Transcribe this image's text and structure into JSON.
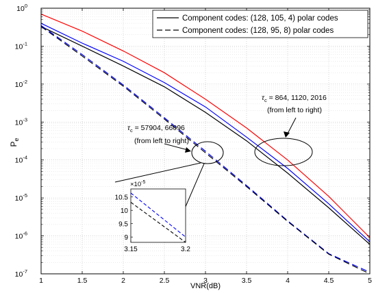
{
  "chart_data": {
    "type": "line",
    "xlabel": "VNR(dB)",
    "ylabel": "P",
    "ylabel_sub": "e",
    "xlim": [
      1,
      5
    ],
    "ylim_exp": [
      -7,
      0
    ],
    "y_scale": "log",
    "grid": true,
    "x_ticks": [
      "1",
      "1.5",
      "2",
      "2.5",
      "3",
      "3.5",
      "4",
      "4.5",
      "5"
    ],
    "y_ticks": [
      "10",
      "10",
      "10",
      "10",
      "10",
      "10",
      "10",
      "10"
    ],
    "y_tick_exps": [
      "0",
      "-1",
      "-2",
      "-3",
      "-4",
      "-5",
      "-6",
      "-7"
    ],
    "legend": {
      "position": "top-right",
      "items": [
        {
          "label": "Component codes: (128, 105, 4) polar codes",
          "style": "solid",
          "color": "#000000"
        },
        {
          "label": "Component codes: (128, 95, 8) polar codes",
          "style": "dashed",
          "color": "#000000"
        }
      ]
    },
    "x": [
      1,
      1.5,
      2,
      2.5,
      3,
      3.5,
      4,
      4.5,
      5
    ],
    "series": [
      {
        "style": "solid",
        "color": "#ff0000",
        "y": [
          0.7,
          0.25,
          0.075,
          0.02,
          0.004,
          0.0007,
          0.0001,
          1.1e-05,
          9e-07
        ]
      },
      {
        "style": "solid",
        "color": "#0000ff",
        "y": [
          0.4,
          0.12,
          0.04,
          0.011,
          0.0025,
          0.0004,
          6e-05,
          7e-06,
          7e-07
        ]
      },
      {
        "style": "solid",
        "color": "#000000",
        "y": [
          0.33,
          0.1,
          0.03,
          0.0085,
          0.0018,
          0.00032,
          4.5e-05,
          5.5e-06,
          6e-07
        ]
      },
      {
        "style": "dashed",
        "color": "#0000ff",
        "y": [
          0.35,
          0.06,
          0.0095,
          0.0013,
          0.00017,
          2.13e-05,
          2.5e-06,
          3.4e-07,
          1.1e-07
        ]
      },
      {
        "style": "dashed",
        "color": "#000000",
        "y": [
          0.33,
          0.055,
          0.0088,
          0.0012,
          0.000155,
          2e-05,
          2.4e-06,
          3.3e-07,
          1e-07
        ]
      }
    ],
    "annotations": [
      {
        "line1_prefix": "τ",
        "line1_sub": "c",
        "line1_text": " = 864, 1120, 2016",
        "line2": "(from left to right)"
      },
      {
        "line1_prefix": "τ",
        "line1_sub": "c",
        "line1_text": " = 57904, 66096",
        "line2": "(from left to right)"
      }
    ],
    "inset": {
      "xlim": [
        3.15,
        3.2
      ],
      "ylim": [
        8.8,
        10.8
      ],
      "multiplier": "×10",
      "multiplier_exp": "-5",
      "x_ticks": [
        "3.15",
        "3.2"
      ],
      "y_ticks": [
        "9",
        "9.5",
        "10",
        "10.5"
      ],
      "series": [
        {
          "style": "dashed",
          "color": "#0000ff",
          "x": [
            3.15,
            3.2
          ],
          "y": [
            10.65,
            9.0
          ]
        },
        {
          "style": "dashed",
          "color": "#000000",
          "x": [
            3.15,
            3.2
          ],
          "y": [
            10.3,
            8.8
          ]
        }
      ]
    }
  }
}
